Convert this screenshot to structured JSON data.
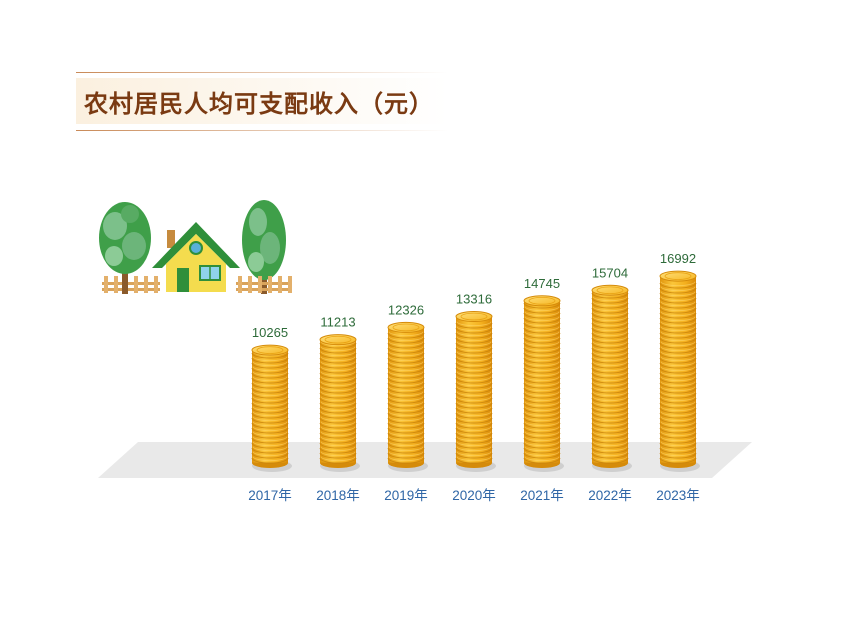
{
  "chart_data": {
    "type": "bar",
    "title": "农村居民人均可支配收入（元）",
    "categories": [
      "2017年",
      "2018年",
      "2019年",
      "2020年",
      "2021年",
      "2022年",
      "2023年"
    ],
    "values": [
      10265,
      11213,
      12326,
      13316,
      14745,
      15704,
      16992
    ],
    "value_labels": [
      "10265",
      "11213",
      "12326",
      "13316",
      "14745",
      "15704",
      "16992"
    ],
    "xlabel": "",
    "ylabel": "",
    "ylim": [
      0,
      17000
    ],
    "grid": false,
    "legend": "none",
    "mark_style": "coin-stack"
  },
  "colors": {
    "title": "#7a3a12",
    "value_label": "#2e6b3a",
    "category_label": "#2f66a6",
    "coin_gold": "#f2b21c",
    "coin_edge": "#d58b0a",
    "floor": "#e9e9e9"
  },
  "illustration": {
    "icons": [
      "tree-icon",
      "house-icon",
      "fence-icon"
    ]
  }
}
